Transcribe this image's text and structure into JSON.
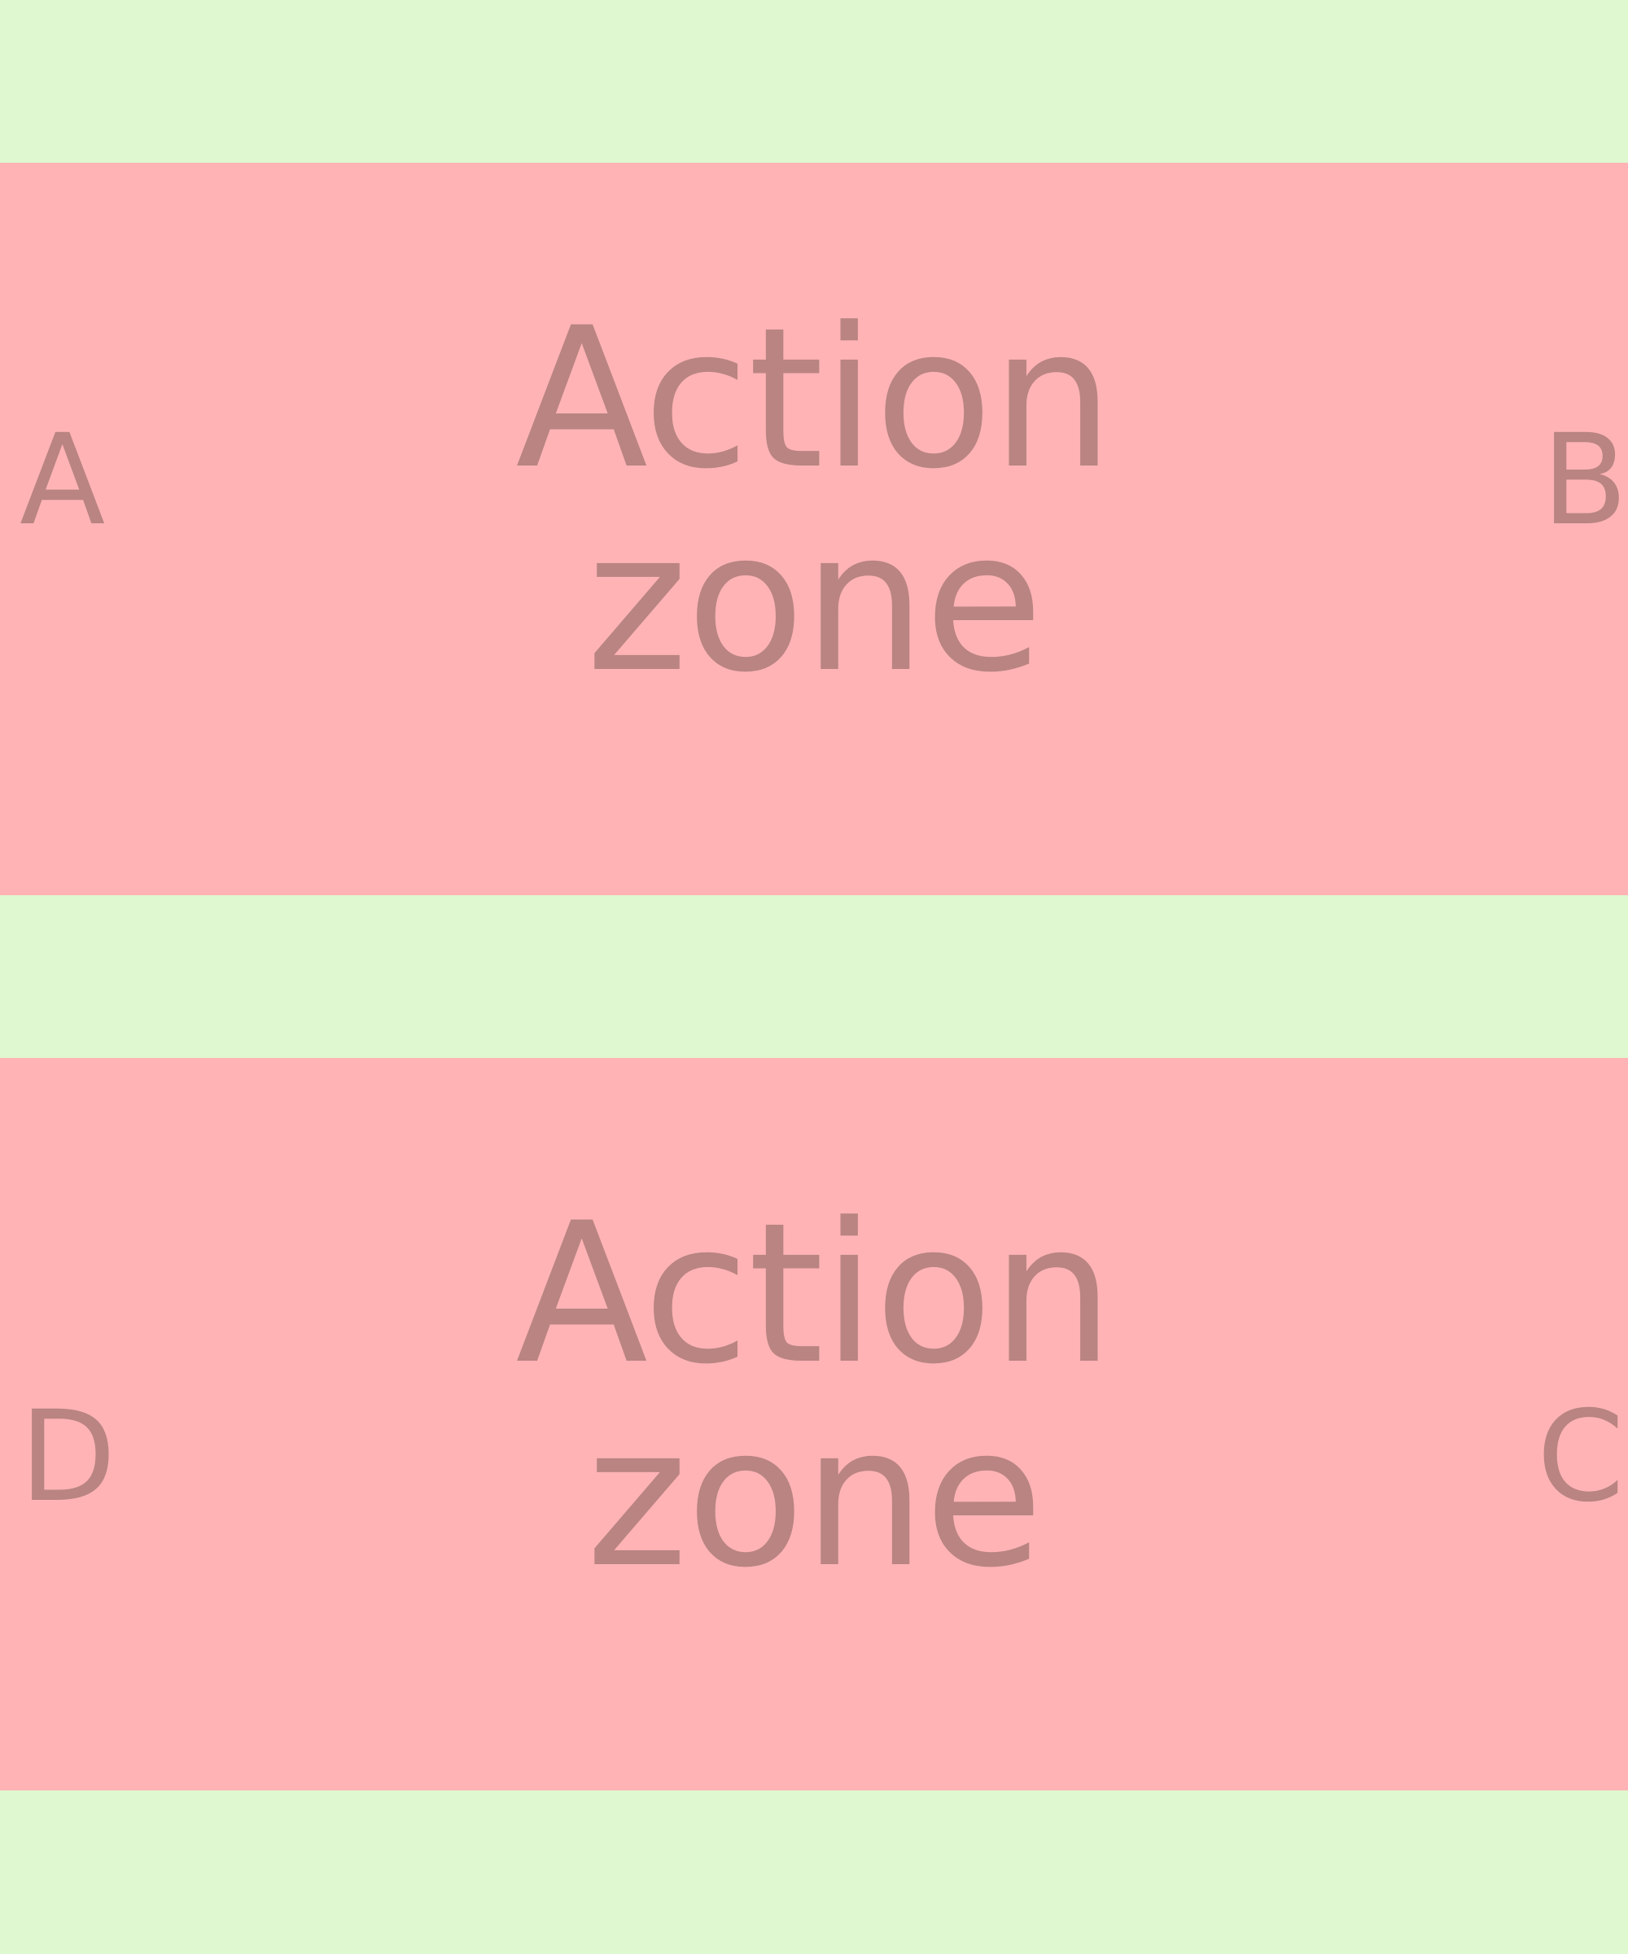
{
  "zones": [
    {
      "label_line1": "Action",
      "label_line2": "zone"
    },
    {
      "label_line1": "Action",
      "label_line2": "zone"
    }
  ],
  "corners": {
    "a": "A",
    "b": "B",
    "c": "C",
    "d": "D"
  },
  "colors": {
    "background": "#dff8cf",
    "zone": "#ffb3b5",
    "text": "#b98481"
  }
}
